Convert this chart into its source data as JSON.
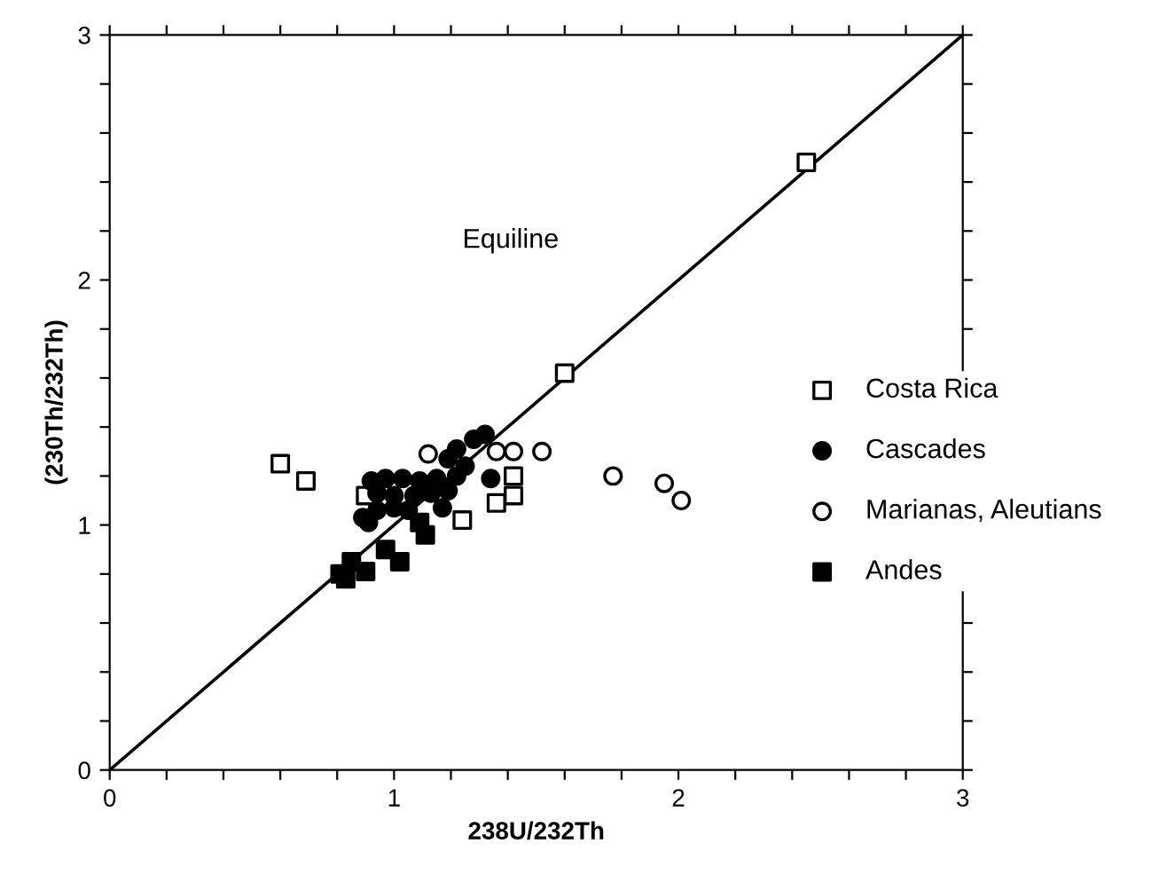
{
  "chart_data": {
    "type": "scatter",
    "xlabel": "238U/232Th",
    "ylabel": "(230Th/232Th)",
    "annotations": [
      "Equiline"
    ],
    "xlim": [
      0,
      3
    ],
    "ylim": [
      0,
      3
    ],
    "xticks": [
      0,
      {
        "value": 0.2,
        "label": null
      },
      {
        "value": 0.4,
        "label": null
      },
      {
        "value": 0.6,
        "label": null
      },
      {
        "value": 0.8,
        "label": null
      },
      1,
      {
        "value": 1.2,
        "label": null
      },
      {
        "value": 1.4,
        "label": null
      },
      {
        "value": 1.6,
        "label": null
      },
      {
        "value": 1.8,
        "label": null
      },
      2,
      {
        "value": 2.2,
        "label": null
      },
      {
        "value": 2.4,
        "label": null
      },
      {
        "value": 2.6,
        "label": null
      },
      {
        "value": 2.8,
        "label": null
      },
      3
    ],
    "yticks": [
      0,
      {
        "value": 0.2,
        "label": null
      },
      {
        "value": 0.4,
        "label": null
      },
      {
        "value": 0.6,
        "label": null
      },
      {
        "value": 0.8,
        "label": null
      },
      1,
      {
        "value": 1.2,
        "label": null
      },
      {
        "value": 1.4,
        "label": null
      },
      {
        "value": 1.6,
        "label": null
      },
      {
        "value": 1.8,
        "label": null
      },
      2,
      {
        "value": 2.2,
        "label": null
      },
      {
        "value": 2.4,
        "label": null
      },
      {
        "value": 2.6,
        "label": null
      },
      {
        "value": 2.8,
        "label": null
      },
      3
    ],
    "grid": false,
    "legend": "right",
    "series": [
      {
        "type": "line",
        "color": "#000000",
        "marker": "none",
        "line_style": "solid",
        "x": [
          0,
          3
        ],
        "values": [
          0,
          3
        ]
      },
      {
        "name": "Costa Rica",
        "color": "#ffffff",
        "marker": "square",
        "x": [
          0.6,
          0.69,
          0.9,
          1.24,
          1.36,
          1.42,
          1.42,
          1.6,
          2.45
        ],
        "values": [
          1.25,
          1.18,
          1.12,
          1.02,
          1.09,
          1.2,
          1.12,
          1.62,
          2.48
        ]
      },
      {
        "name": "Cascades",
        "color": "#000000",
        "marker": "circle",
        "x": [
          1.32,
          1.28,
          1.22,
          1.19,
          1.25,
          1.22,
          1.34,
          1.15,
          1.09,
          1.03,
          0.97,
          0.92,
          0.94,
          1.0,
          1.07,
          1.13,
          1.19,
          0.89,
          0.94,
          1.0,
          1.05,
          1.17,
          0.91
        ],
        "values": [
          1.37,
          1.35,
          1.31,
          1.27,
          1.24,
          1.2,
          1.19,
          1.19,
          1.18,
          1.19,
          1.19,
          1.18,
          1.13,
          1.12,
          1.12,
          1.13,
          1.14,
          1.03,
          1.06,
          1.07,
          1.06,
          1.07,
          1.01
        ]
      },
      {
        "name": "Marianas, Aleutians",
        "color": "#ffffff",
        "marker": "circle",
        "x": [
          1.12,
          1.36,
          1.42,
          1.52,
          1.77,
          1.95,
          2.01
        ],
        "values": [
          1.29,
          1.3,
          1.3,
          1.3,
          1.2,
          1.17,
          1.1
        ]
      },
      {
        "name": "Andes",
        "color": "#000000",
        "marker": "square",
        "x": [
          0.81,
          0.85,
          0.9,
          0.97,
          1.02,
          1.11,
          1.09,
          0.83
        ],
        "values": [
          0.8,
          0.85,
          0.81,
          0.9,
          0.85,
          0.96,
          1.01,
          0.78
        ]
      }
    ]
  }
}
